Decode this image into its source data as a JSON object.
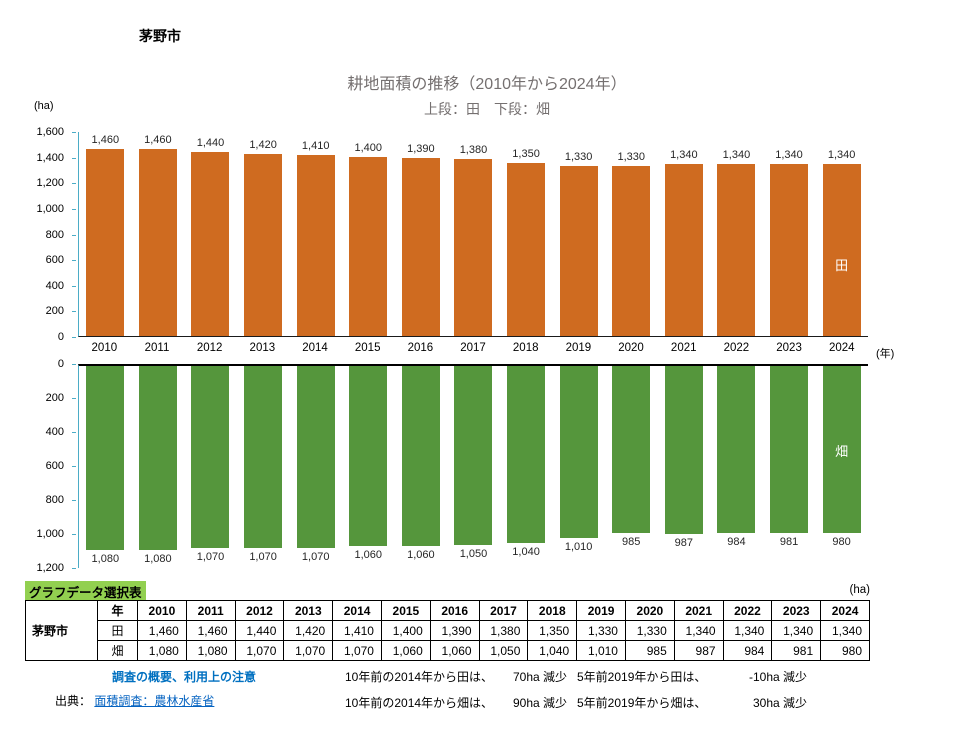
{
  "page": {
    "region_label": "茅野市"
  },
  "chart": {
    "title": "耕地面積の推移（2010年から2024年）",
    "subtitle": "上段：田　下段：畑",
    "y_unit": "(ha)",
    "x_unit": "(年)"
  },
  "chart_data": {
    "type": "bar",
    "title": "耕地面積の推移（2010年から2024年）",
    "subtitle": "上段：田　下段：畑",
    "categories": [
      "2010",
      "2011",
      "2012",
      "2013",
      "2014",
      "2015",
      "2016",
      "2017",
      "2018",
      "2019",
      "2020",
      "2021",
      "2022",
      "2023",
      "2024"
    ],
    "series": [
      {
        "name": "田",
        "color": "#CF6B20",
        "orientation": "up",
        "axis": {
          "min": 0,
          "max": 1600,
          "step": 200
        },
        "values": [
          1460,
          1460,
          1440,
          1420,
          1410,
          1400,
          1390,
          1380,
          1350,
          1330,
          1330,
          1340,
          1340,
          1340,
          1340
        ]
      },
      {
        "name": "畑",
        "color": "#55963C",
        "orientation": "down",
        "axis": {
          "min": 0,
          "max": 1200,
          "step": 200
        },
        "values": [
          1080,
          1080,
          1070,
          1070,
          1070,
          1060,
          1060,
          1050,
          1040,
          1010,
          985,
          987,
          984,
          981,
          980
        ]
      }
    ],
    "ylabel": "(ha)",
    "xlabel": "(年)",
    "legend_position": "inside-last-bar",
    "grid": false
  },
  "table": {
    "caption": "グラフデータ選択表",
    "unit": "(ha)",
    "region": "茅野市",
    "year_header": "年",
    "years": [
      "2010",
      "2011",
      "2012",
      "2013",
      "2014",
      "2015",
      "2016",
      "2017",
      "2018",
      "2019",
      "2020",
      "2021",
      "2022",
      "2023",
      "2024"
    ],
    "rows": [
      {
        "label": "田",
        "values": [
          "1,460",
          "1,460",
          "1,440",
          "1,420",
          "1,410",
          "1,400",
          "1,390",
          "1,380",
          "1,350",
          "1,330",
          "1,330",
          "1,340",
          "1,340",
          "1,340",
          "1,340"
        ]
      },
      {
        "label": "畑",
        "values": [
          "1,080",
          "1,080",
          "1,070",
          "1,070",
          "1,070",
          "1,060",
          "1,060",
          "1,050",
          "1,040",
          "1,010",
          "985",
          "987",
          "984",
          "981",
          "980"
        ]
      }
    ]
  },
  "footer": {
    "survey_link": "調査の概要、利用上の注意",
    "source_prefix": "出典：",
    "source_link": "面積調査：農林水産省",
    "notes": [
      {
        "label": "10年前の2014年から田は、",
        "value": "70ha 減少"
      },
      {
        "label": "5年前2019年から田は、",
        "value": "-10ha 減少"
      },
      {
        "label": "10年前の2014年から畑は、",
        "value": "90ha 減少"
      },
      {
        "label": "5年前2019年から畑は、",
        "value": "30ha 減少"
      }
    ]
  }
}
